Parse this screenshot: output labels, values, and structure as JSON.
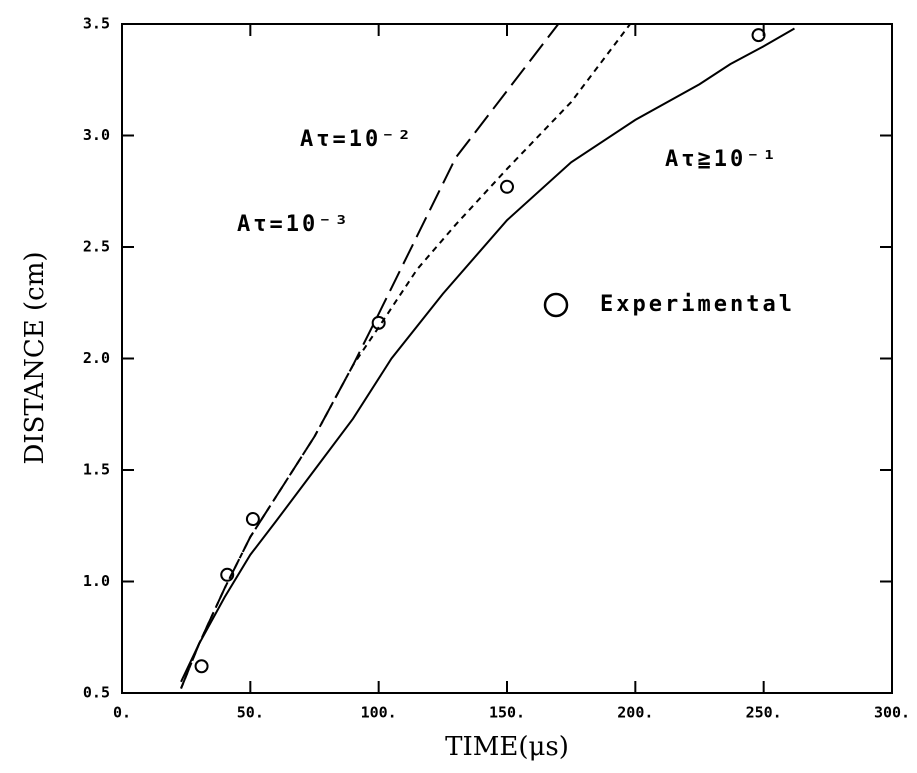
{
  "chart_data": {
    "type": "line",
    "xlabel": "TIME(μs)",
    "ylabel": "DISTANCE (cm)",
    "xlim": [
      0,
      300
    ],
    "xticks": [
      {
        "value": 0,
        "label": "0."
      },
      {
        "value": 50,
        "label": "50."
      },
      {
        "value": 100,
        "label": "100."
      },
      {
        "value": 150,
        "label": "150."
      },
      {
        "value": 200,
        "label": "200."
      },
      {
        "value": 250,
        "label": "250."
      },
      {
        "value": 300,
        "label": "300."
      }
    ],
    "ylim": [
      0.5,
      3.5
    ],
    "yticks": [
      0.5,
      {
        "value": 1,
        "label": "1.0"
      },
      1.5,
      {
        "value": 2,
        "label": "2.0"
      },
      2.5,
      {
        "value": 3,
        "label": "3.0"
      },
      3.5
    ],
    "series": [
      {
        "name": "Aτ≧10⁻¹",
        "color": "#000000",
        "linestyle": "solid",
        "x": [
          23,
          30,
          40,
          50,
          60,
          75,
          90,
          105,
          125,
          150,
          175,
          200,
          225,
          237,
          250,
          262
        ],
        "values": [
          0.55,
          0.72,
          0.93,
          1.12,
          1.27,
          1.5,
          1.73,
          2.0,
          2.29,
          2.62,
          2.88,
          3.07,
          3.23,
          3.32,
          3.4,
          3.48
        ]
      },
      {
        "name": "Aτ=10⁻²",
        "color": "#000000",
        "linestyle": "dashed",
        "x": [
          23,
          30,
          40,
          50,
          60,
          75,
          90,
          100,
          115,
          130,
          150,
          170
        ],
        "values": [
          0.52,
          0.72,
          0.97,
          1.2,
          1.38,
          1.65,
          1.97,
          2.2,
          2.55,
          2.9,
          3.2,
          3.5
        ]
      },
      {
        "name": "Aτ=10⁻³",
        "color": "#000000",
        "linestyle": "dotted",
        "x": [
          23,
          30,
          40,
          50,
          60,
          75,
          90,
          100,
          115,
          130,
          150,
          175,
          198
        ],
        "values": [
          0.52,
          0.72,
          0.97,
          1.2,
          1.38,
          1.65,
          1.97,
          2.14,
          2.4,
          2.6,
          2.85,
          3.15,
          3.5
        ]
      },
      {
        "name": "Experimental",
        "color": "#000000",
        "marker": "circle",
        "x": [
          31,
          41,
          51,
          100,
          150,
          248
        ],
        "values": [
          0.62,
          1.03,
          1.28,
          2.16,
          2.77,
          3.45
        ]
      }
    ]
  }
}
